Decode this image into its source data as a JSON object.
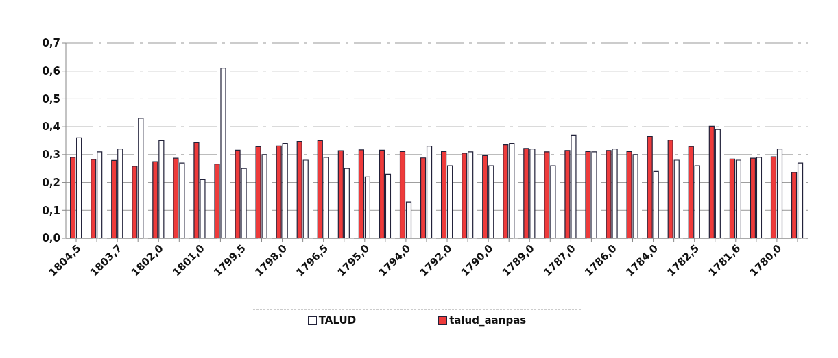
{
  "chart_data": {
    "type": "bar",
    "categories": [
      "1804,5",
      null,
      "1803,7",
      null,
      "1802,0",
      null,
      "1801,0",
      null,
      "1799,5",
      null,
      "1798,0",
      null,
      "1796,5",
      null,
      "1795,0",
      null,
      "1794,0",
      null,
      "1792,0",
      null,
      "1790,0",
      null,
      "1789,0",
      null,
      "1787,0",
      null,
      "1786,0",
      null,
      "1784,0",
      null,
      "1782,5",
      null,
      "1781,6",
      null,
      "1780,0",
      null
    ],
    "series": [
      {
        "name": "talud_aanpas",
        "color": "#ee3b3b",
        "values": [
          0.29,
          0.283,
          0.279,
          0.258,
          0.275,
          0.287,
          0.343,
          0.266,
          0.316,
          0.328,
          0.331,
          0.347,
          0.35,
          0.314,
          0.317,
          0.316,
          0.311,
          0.288,
          0.311,
          0.305,
          0.296,
          0.335,
          0.322,
          0.31,
          0.315,
          0.311,
          0.315,
          0.311,
          0.365,
          0.352,
          0.329,
          0.402,
          0.284,
          0.287,
          0.292,
          0.236
        ]
      },
      {
        "name": "TALUD",
        "color": "#ffffff",
        "values": [
          0.36,
          0.31,
          0.32,
          0.43,
          0.35,
          0.27,
          0.21,
          0.61,
          0.25,
          0.3,
          0.34,
          0.28,
          0.29,
          0.25,
          0.22,
          0.23,
          0.13,
          0.33,
          0.26,
          0.31,
          0.26,
          0.34,
          0.32,
          0.26,
          0.37,
          0.31,
          0.32,
          0.3,
          0.24,
          0.28,
          0.26,
          0.39,
          0.28,
          0.29,
          0.32,
          0.27
        ]
      }
    ],
    "ylim": [
      0,
      0.7
    ],
    "yticks": [
      {
        "value": 0,
        "label": "0,0"
      },
      {
        "value": 0.1,
        "label": "0,1"
      },
      {
        "value": 0.2,
        "label": "0,2"
      },
      {
        "value": 0.3,
        "label": "0,3"
      },
      {
        "value": 0.4,
        "label": "0,4"
      },
      {
        "value": 0.5,
        "label": "0,5"
      },
      {
        "value": 0.6,
        "label": "0,6"
      },
      {
        "value": 0.7,
        "label": "0,7"
      }
    ],
    "grid": "y",
    "legend": "bottom"
  }
}
